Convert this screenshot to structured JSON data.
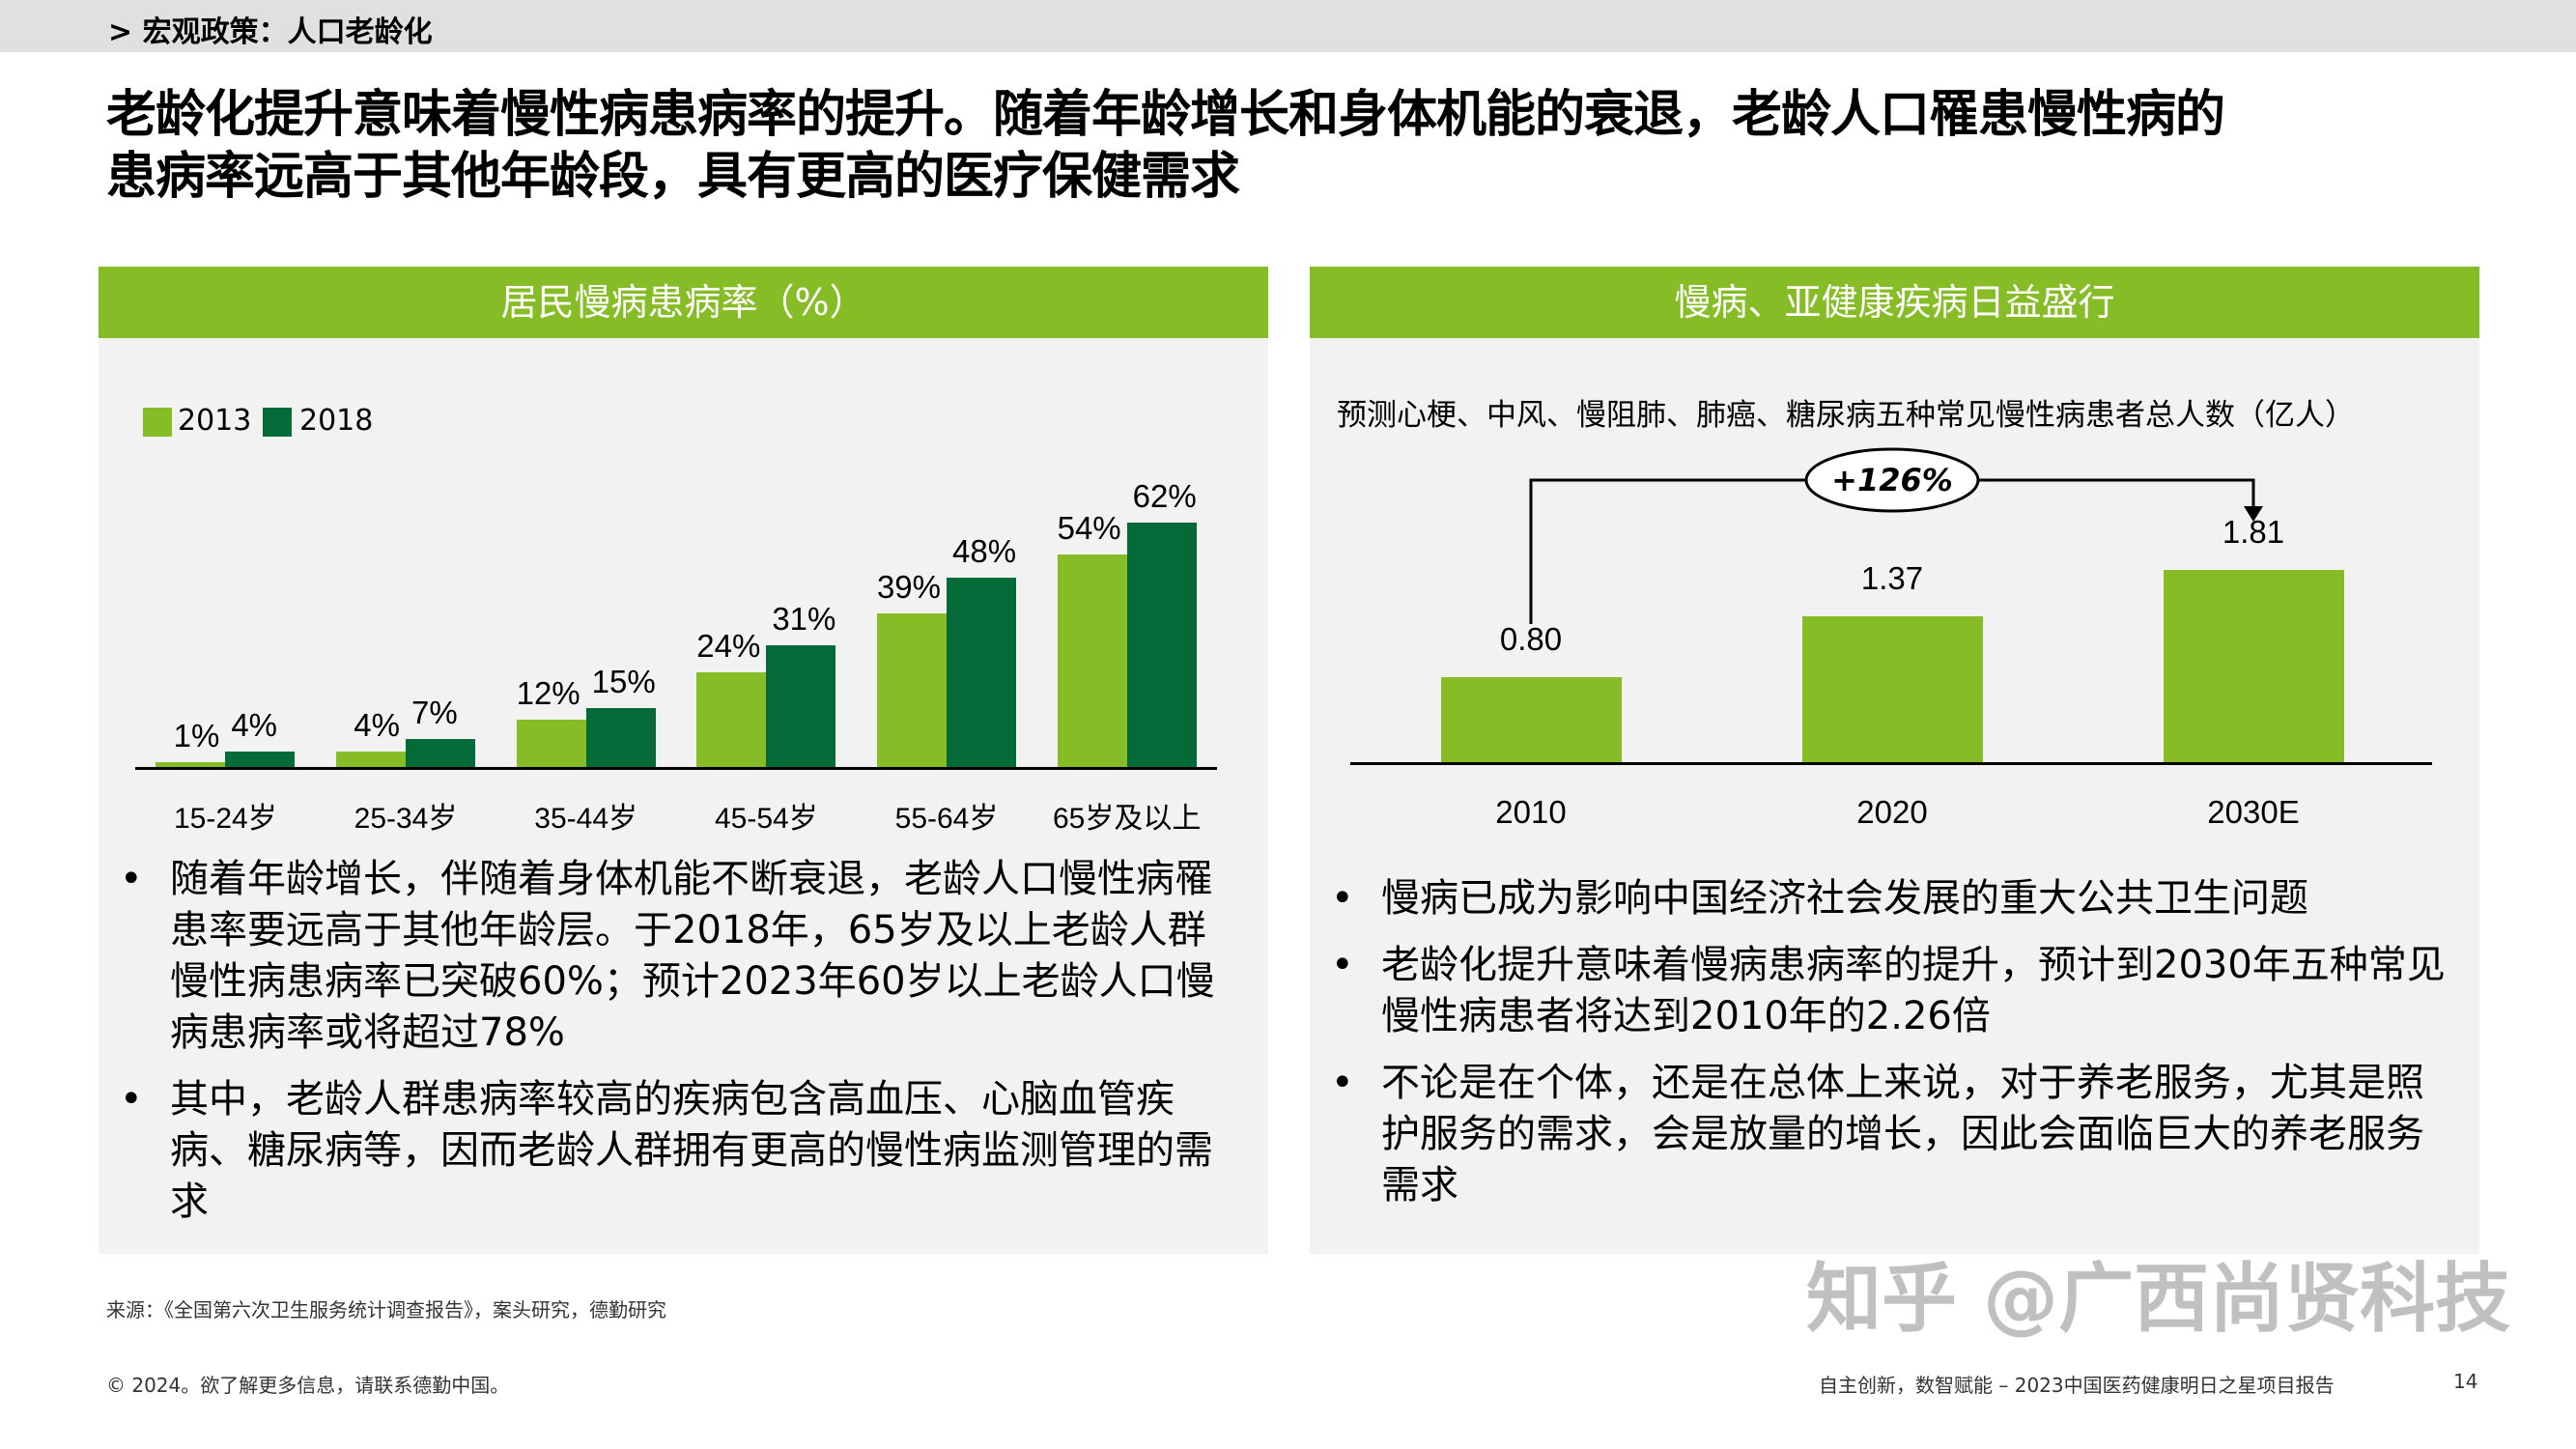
{
  "breadcrumb": "> 宏观政策：人口老龄化",
  "title_lines": [
    "老龄化提升意味着慢性病患病率的提升。随着年龄增长和身体机能的衰退，老龄人口罹患慢性病的",
    "患病率远高于其他年龄段，具有更高的医疗保健需求"
  ],
  "colors": {
    "light_green": "#86bc25",
    "dark_green": "#046a38",
    "panel_bg": "#f2f2f2"
  },
  "left": {
    "header": "居民慢病患病率（%）",
    "bullets": [
      "随着年龄增长，伴随着身体机能不断衰退，老龄人口慢性病罹患率要远高于其他年龄层。于2018年，65岁及以上老龄人群慢性病患病率已突破60%；预计2023年60岁以上老龄人口慢病患病率或将超过78%",
      "其中，老龄人群患病率较高的疾病包含高血压、心脑血管疾病、糖尿病等，因而老龄人群拥有更高的慢性病监测管理的需求"
    ]
  },
  "right": {
    "header": "慢病、亚健康疾病日益盛行",
    "bullets": [
      "慢病已成为影响中国经济社会发展的重大公共卫生问题",
      "老龄化提升意味着慢病患病率的提升，预计到2030年五种常见慢性病患者将达到2010年的2.26倍",
      "不论是在个体，还是在总体上来说，对于养老服务，尤其是照护服务的需求，会是放量的增长，因此会面临巨大的养老服务需求"
    ]
  },
  "chart_data": [
    {
      "type": "bar",
      "title": "",
      "categories": [
        "15-24岁",
        "25-34岁",
        "35-44岁",
        "45-54岁",
        "55-64岁",
        "65岁及以上"
      ],
      "series": [
        {
          "name": "2013",
          "values": [
            1,
            4,
            12,
            24,
            39,
            54
          ],
          "labels": [
            "1%",
            "4%",
            "12%",
            "24%",
            "39%",
            "54%"
          ]
        },
        {
          "name": "2018",
          "values": [
            4,
            7,
            15,
            31,
            48,
            62
          ],
          "labels": [
            "4%",
            "7%",
            "15%",
            "31%",
            "48%",
            "62%"
          ]
        }
      ],
      "legend": "top-left",
      "grid": false
    },
    {
      "type": "bar",
      "title": "预测心梗、中风、慢阻肺、肺癌、糖尿病五种常见慢性病患者总人数（亿人）",
      "categories": [
        "2010",
        "2020",
        "2030E"
      ],
      "values": [
        0.8,
        1.37,
        1.81
      ],
      "labels": [
        "0.80",
        "1.37",
        "1.81"
      ],
      "annotation": "+126%",
      "grid": false
    }
  ],
  "footer": {
    "source": "来源：《全国第六次卫生服务统计调查报告》，案头研究，德勤研究",
    "copyright": "© 2024。欲了解更多信息，请联系德勤中国。",
    "report": "自主创新，数智赋能 – 2023中国医药健康明日之星项目报告",
    "page": "14",
    "watermark": "知乎 @广西尚贤科技"
  }
}
